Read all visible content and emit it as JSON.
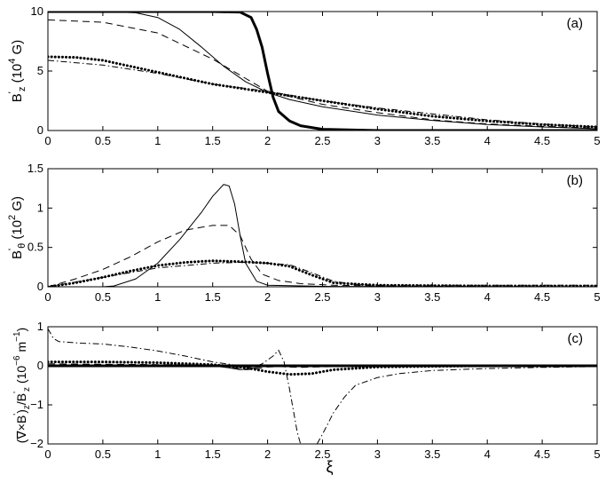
{
  "chart_data": [
    {
      "type": "line",
      "panel_label": "(a)",
      "ylabel": {
        "base": "B",
        "prime": "'",
        "sub": "z",
        "unit_pre": " (10",
        "unit_exp": "4",
        "unit_post": " G)"
      },
      "xlim": [
        0,
        5
      ],
      "ylim": [
        0,
        10
      ],
      "xticks": [
        0,
        0.5,
        1,
        1.5,
        2,
        2.5,
        3,
        3.5,
        4,
        4.5,
        5
      ],
      "xtick_labels": [
        "0",
        "0.5",
        "1",
        "1.5",
        "2",
        "2.5",
        "3",
        "3.5",
        "4",
        "4.5",
        "5"
      ],
      "yticks": [
        0,
        5,
        10
      ],
      "ytick_labels": [
        "0",
        "5",
        "10"
      ],
      "series": [
        {
          "style": "thick-solid",
          "color": "#000000",
          "x": [
            0,
            0.5,
            1,
            1.5,
            1.75,
            1.85,
            1.9,
            1.95,
            2.0,
            2.05,
            2.1,
            2.2,
            2.3,
            2.5,
            3,
            5
          ],
          "y": [
            10,
            10,
            10,
            10,
            9.95,
            9.5,
            8.5,
            7.0,
            4.8,
            2.8,
            1.6,
            0.8,
            0.4,
            0.1,
            0,
            0
          ]
        },
        {
          "style": "thin-solid",
          "color": "#000000",
          "x": [
            0,
            0.5,
            0.8,
            1.0,
            1.2,
            1.4,
            1.6,
            1.8,
            2.0,
            2.2,
            2.5,
            3.0,
            3.5,
            4.0,
            4.5,
            5.0
          ],
          "y": [
            10,
            10,
            9.9,
            9.5,
            8.5,
            7.0,
            5.4,
            4.1,
            3.2,
            2.6,
            2.0,
            1.3,
            0.85,
            0.5,
            0.3,
            0.15
          ]
        },
        {
          "style": "dashed",
          "color": "#000000",
          "x": [
            0,
            0.5,
            1.0,
            1.5,
            2.0,
            2.5,
            3.0,
            3.5,
            4.0,
            4.5,
            5.0
          ],
          "y": [
            9.3,
            9.1,
            8.2,
            6.0,
            3.3,
            2.2,
            1.5,
            0.9,
            0.55,
            0.35,
            0.2
          ]
        },
        {
          "style": "dotted",
          "color": "#000000",
          "x": [
            0,
            0.25,
            0.5,
            1.0,
            1.5,
            2.0,
            2.5,
            3.0,
            3.5,
            4.0,
            4.5,
            5.0
          ],
          "y": [
            6.2,
            6.15,
            5.9,
            4.9,
            3.9,
            3.2,
            2.5,
            1.8,
            1.2,
            0.8,
            0.5,
            0.3
          ]
        },
        {
          "style": "dashdot",
          "color": "#000000",
          "x": [
            0,
            0.5,
            1.0,
            1.5,
            2.0,
            2.5,
            3.0,
            3.5,
            4.0,
            4.5,
            5.0
          ],
          "y": [
            5.9,
            5.5,
            4.8,
            3.9,
            3.3,
            2.5,
            1.9,
            1.4,
            0.9,
            0.55,
            0.3
          ]
        }
      ]
    },
    {
      "type": "line",
      "panel_label": "(b)",
      "ylabel": {
        "base": "B",
        "prime": "'",
        "sub": "θ",
        "unit_pre": " (10",
        "unit_exp": "2",
        "unit_post": " G)"
      },
      "xlim": [
        0,
        5
      ],
      "ylim": [
        0,
        1.5
      ],
      "xticks": [
        0,
        0.5,
        1,
        1.5,
        2,
        2.5,
        3,
        3.5,
        4,
        4.5,
        5
      ],
      "xtick_labels": [
        "0",
        "0.5",
        "1",
        "1.5",
        "2",
        "2.5",
        "3",
        "3.5",
        "4",
        "4.5",
        "5"
      ],
      "yticks": [
        0,
        0.5,
        1,
        1.5
      ],
      "ytick_labels": [
        "0",
        "0.5",
        "1",
        "1.5"
      ],
      "series": [
        {
          "style": "thin-solid",
          "color": "#000000",
          "x": [
            0,
            0.5,
            0.6,
            0.8,
            1.0,
            1.2,
            1.4,
            1.5,
            1.6,
            1.65,
            1.7,
            1.75,
            1.8,
            1.9,
            2.0,
            2.5,
            5.0
          ],
          "y": [
            0,
            0,
            0.01,
            0.1,
            0.3,
            0.6,
            0.95,
            1.15,
            1.3,
            1.28,
            1.05,
            0.65,
            0.3,
            0.07,
            0.02,
            0.005,
            0
          ]
        },
        {
          "style": "dashed",
          "color": "#000000",
          "x": [
            0,
            0.25,
            0.5,
            0.75,
            1.0,
            1.25,
            1.5,
            1.65,
            1.75,
            1.85,
            1.95,
            2.1,
            2.3,
            2.6,
            3.0,
            5.0
          ],
          "y": [
            0,
            0.1,
            0.22,
            0.38,
            0.57,
            0.72,
            0.78,
            0.78,
            0.65,
            0.35,
            0.16,
            0.08,
            0.04,
            0.02,
            0.01,
            0
          ]
        },
        {
          "style": "dotted",
          "color": "#000000",
          "x": [
            0,
            0.25,
            0.5,
            0.75,
            1.0,
            1.25,
            1.5,
            1.75,
            2.0,
            2.2,
            2.4,
            2.6,
            3.0,
            4.0,
            5.0
          ],
          "y": [
            0,
            0.05,
            0.12,
            0.2,
            0.27,
            0.31,
            0.33,
            0.32,
            0.3,
            0.26,
            0.15,
            0.05,
            0.02,
            0.01,
            0.01
          ]
        },
        {
          "style": "dashdot",
          "color": "#000000",
          "x": [
            0,
            0.5,
            1.0,
            1.5,
            1.75,
            2.0,
            2.2,
            2.4,
            2.6,
            2.8,
            3.0,
            3.5,
            4.0,
            5.0
          ],
          "y": [
            0,
            0.12,
            0.24,
            0.3,
            0.31,
            0.3,
            0.28,
            0.18,
            0.07,
            0.03,
            0.02,
            0.02,
            0.02,
            0.02
          ]
        }
      ]
    },
    {
      "type": "line",
      "panel_label": "(c)",
      "ylabel": {
        "pre": "(∇×B",
        "prime": "'",
        "post": ")",
        "sub": "z",
        "mid": "/B",
        "prime2": "'",
        "sub2": "z",
        "unit_pre": " (10",
        "unit_exp": "−6",
        "unit_post": " m",
        "unit_exp2": "−1",
        "unit_end": ")"
      },
      "xlabel": "ξ",
      "xlim": [
        0,
        5
      ],
      "ylim": [
        -2,
        1
      ],
      "xticks": [
        0,
        0.5,
        1,
        1.5,
        2,
        2.5,
        3,
        3.5,
        4,
        4.5,
        5
      ],
      "xtick_labels": [
        "0",
        "0.5",
        "1",
        "1.5",
        "2",
        "2.5",
        "3",
        "3.5",
        "4",
        "4.5",
        "5"
      ],
      "yticks": [
        -2,
        -1,
        0,
        1
      ],
      "ytick_labels": [
        "−2",
        "−1",
        "0",
        "1"
      ],
      "series": [
        {
          "style": "thick-solid",
          "color": "#000000",
          "x": [
            0,
            5
          ],
          "y": [
            0,
            0
          ]
        },
        {
          "style": "thin-solid",
          "color": "#000000",
          "x": [
            0,
            1.5,
            1.65,
            1.75,
            1.85,
            1.95,
            2.1,
            2.5,
            5.0
          ],
          "y": [
            0,
            0,
            -0.05,
            -0.1,
            -0.07,
            -0.02,
            0,
            0,
            0
          ]
        },
        {
          "style": "dashed",
          "color": "#000000",
          "x": [
            0,
            1.5,
            1.7,
            1.8,
            1.9,
            2.0,
            2.1,
            2.3,
            2.6,
            5.0
          ],
          "y": [
            0.05,
            0.02,
            -0.05,
            -0.1,
            -0.08,
            -0.03,
            -0.02,
            -0.04,
            -0.02,
            0
          ]
        },
        {
          "style": "dotted",
          "color": "#000000",
          "x": [
            0,
            0.5,
            1.0,
            1.5,
            1.8,
            2.0,
            2.2,
            2.4,
            2.6,
            3.0,
            4.0,
            5.0
          ],
          "y": [
            0.1,
            0.1,
            0.08,
            0.03,
            -0.05,
            -0.15,
            -0.22,
            -0.2,
            -0.1,
            -0.03,
            0,
            0
          ]
        },
        {
          "style": "dashdot",
          "color": "#000000",
          "x": [
            0,
            0.05,
            0.1,
            0.3,
            0.5,
            0.75,
            1.0,
            1.25,
            1.5,
            1.7,
            1.85,
            1.95,
            2.05,
            2.1,
            2.15,
            2.2,
            2.27,
            2.3,
            "gap",
            2.45,
            2.5,
            2.6,
            2.7,
            2.8,
            3.0,
            3.2,
            3.5,
            4.0,
            4.5,
            5.0
          ],
          "y": [
            0.95,
            0.7,
            0.62,
            0.58,
            0.56,
            0.48,
            0.38,
            0.25,
            0.1,
            0.02,
            -0.05,
            0.05,
            0.25,
            0.4,
            0.1,
            -0.6,
            -1.7,
            -2.0,
            "gap",
            -2.0,
            -1.75,
            -1.2,
            -0.8,
            -0.5,
            -0.3,
            -0.2,
            -0.12,
            -0.07,
            -0.04,
            -0.02
          ]
        }
      ]
    }
  ]
}
